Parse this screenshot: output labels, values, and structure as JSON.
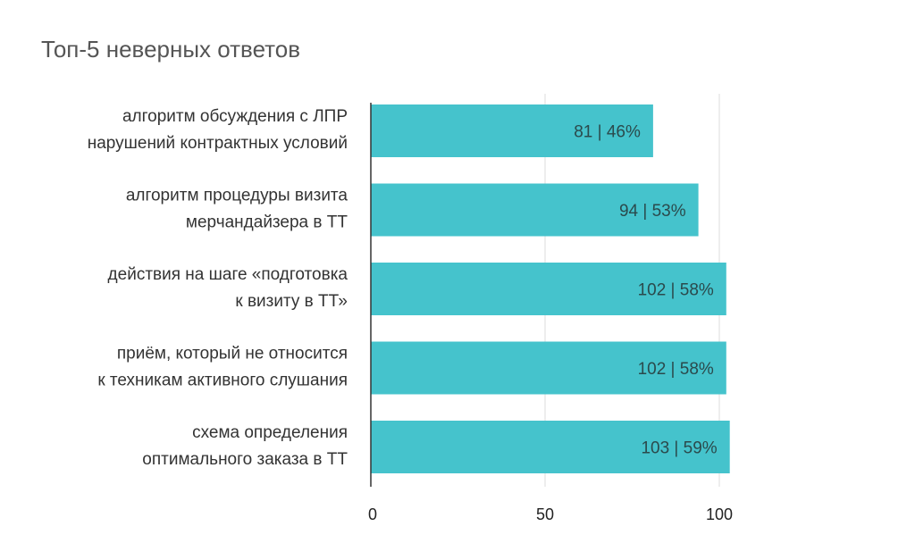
{
  "chart_data": {
    "type": "bar",
    "orientation": "horizontal",
    "title": "Топ-5 неверных ответов",
    "categories": [
      [
        "алгоритм обсуждения с ЛПР",
        "нарушений контрактных условий"
      ],
      [
        "алгоритм процедуры визита",
        "мерчандайзера в ТТ"
      ],
      [
        "действия на шаге «подготовка",
        "к визиту в ТТ»"
      ],
      [
        "приём, который не относится",
        "к техникам активного слушания"
      ],
      [
        "схема определения",
        "оптимального заказа в ТТ"
      ]
    ],
    "values": [
      81,
      94,
      102,
      102,
      103
    ],
    "data_labels": [
      "81 | 46%",
      "94 | 53%",
      "102 | 58%",
      "102 | 58%",
      "103 | 59%"
    ],
    "xlim": [
      0,
      105
    ],
    "xticks": [
      0,
      50,
      100
    ],
    "grid": true,
    "colors": {
      "bar": "#45c3cc",
      "grid": "#dddddd",
      "axis": "#333333"
    }
  }
}
